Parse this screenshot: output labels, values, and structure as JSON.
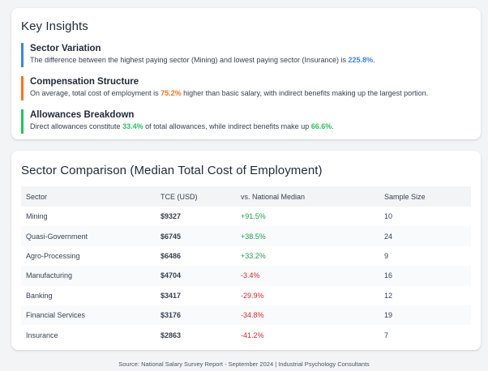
{
  "insights": {
    "title": "Key Insights",
    "items": [
      {
        "title": "Sector Variation",
        "text_before": "The difference between the highest paying sector (Mining) and lowest paying sector (Insurance) is ",
        "highlight1": "225.8%",
        "text_middle": "",
        "highlight2": "",
        "text_after": ".",
        "color": "#3b82f6"
      },
      {
        "title": "Compensation Structure",
        "text_before": "On average, total cost of employment is ",
        "highlight1": "75.2%",
        "text_middle": " higher than basic salary, with indirect benefits making up the largest portion.",
        "highlight2": "",
        "text_after": "",
        "color": "#f97316"
      },
      {
        "title": "Allowances Breakdown",
        "text_before": "Direct allowances constitute ",
        "highlight1": "33.4%",
        "text_middle": " of total allowances, while indirect benefits make up ",
        "highlight2": "66.6%",
        "text_after": ".",
        "color": "#22c55e"
      }
    ]
  },
  "comparison": {
    "title": "Sector Comparison (Median Total Cost of Employment)",
    "headers": [
      "Sector",
      "TCE (USD)",
      "vs. National Median",
      "Sample Size"
    ],
    "rows": [
      {
        "sector": "Mining",
        "tce": "$9327",
        "vs": "+91.5%",
        "sample": "10",
        "trend": "positive"
      },
      {
        "sector": "Quasi-Government",
        "tce": "$6745",
        "vs": "+38.5%",
        "sample": "24",
        "trend": "positive"
      },
      {
        "sector": "Agro-Processing",
        "tce": "$6486",
        "vs": "+33.2%",
        "sample": "9",
        "trend": "positive"
      },
      {
        "sector": "Manufacturing",
        "tce": "$4704",
        "vs": "-3.4%",
        "sample": "16",
        "trend": "negative"
      },
      {
        "sector": "Banking",
        "tce": "$3417",
        "vs": "-29.9%",
        "sample": "12",
        "trend": "negative"
      },
      {
        "sector": "Financial Services",
        "tce": "$3176",
        "vs": "-34.8%",
        "sample": "19",
        "trend": "negative"
      },
      {
        "sector": "Insurance",
        "tce": "$2863",
        "vs": "-41.2%",
        "sample": "7",
        "trend": "negative"
      }
    ]
  },
  "footer": "Source: National Salary Survey Report - September 2024 | Industrial Psychology Consultants",
  "colors": {
    "positive": "#16a34a",
    "negative": "#dc2626",
    "blue": "#3b82f6",
    "orange": "#f97316",
    "green": "#22c55e"
  }
}
